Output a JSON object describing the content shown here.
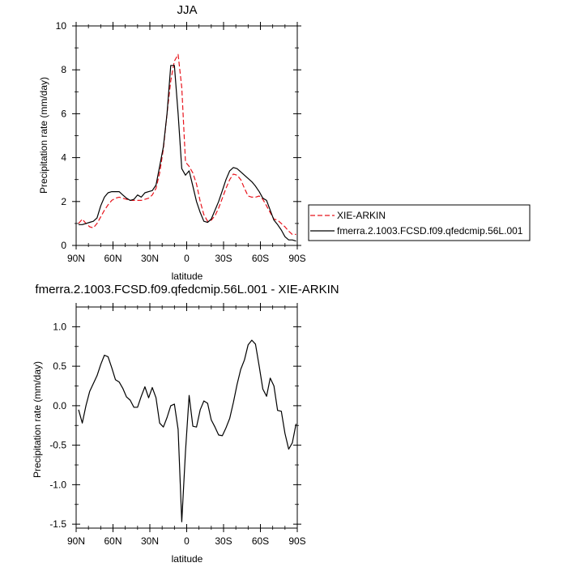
{
  "chart_data": [
    {
      "type": "line",
      "title": "JJA",
      "xlabel": "latitude",
      "ylabel": "Precipitation rate (mm/day)",
      "xlim": [
        -90,
        90
      ],
      "ylim": [
        0,
        10
      ],
      "x_ticks": [
        {
          "value": -90,
          "label": "90N"
        },
        {
          "value": -60,
          "label": "60N"
        },
        {
          "value": -30,
          "label": "30N"
        },
        {
          "value": 0,
          "label": "0"
        },
        {
          "value": 30,
          "label": "30S"
        },
        {
          "value": 60,
          "label": "60S"
        },
        {
          "value": 90,
          "label": "90S"
        }
      ],
      "y_ticks": [
        {
          "value": 0,
          "label": "0"
        },
        {
          "value": 2,
          "label": "2"
        },
        {
          "value": 4,
          "label": "4"
        },
        {
          "value": 6,
          "label": "6"
        },
        {
          "value": 8,
          "label": "8"
        },
        {
          "value": 10,
          "label": "10"
        }
      ],
      "grid": false,
      "legend_position": "right",
      "series": [
        {
          "name": "XIE-ARKIN",
          "color": "#e8141c",
          "dash": "dashed",
          "x": [
            -88,
            -85,
            -82,
            -79,
            -76,
            -73,
            -70,
            -67,
            -64,
            -61,
            -58,
            -55,
            -52,
            -49,
            -46,
            -43,
            -40,
            -37,
            -34,
            -31,
            -28,
            -25,
            -22,
            -19,
            -16,
            -13,
            -10,
            -7,
            -4,
            -1,
            2,
            5,
            8,
            11,
            14,
            17,
            20,
            23,
            26,
            29,
            32,
            35,
            38,
            41,
            44,
            47,
            50,
            53,
            56,
            59,
            62,
            65,
            68,
            71,
            74,
            77,
            80,
            83,
            86,
            89
          ],
          "y": [
            1.0,
            1.2,
            1.0,
            0.85,
            0.8,
            1.0,
            1.3,
            1.6,
            1.85,
            2.05,
            2.15,
            2.2,
            2.15,
            2.1,
            2.05,
            2.05,
            2.05,
            2.05,
            2.1,
            2.15,
            2.3,
            2.6,
            3.3,
            4.4,
            6.0,
            7.5,
            8.4,
            8.7,
            7.2,
            3.8,
            3.6,
            3.3,
            2.8,
            2.0,
            1.4,
            1.1,
            1.15,
            1.35,
            1.7,
            2.15,
            2.6,
            3.0,
            3.25,
            3.2,
            3.0,
            2.6,
            2.25,
            2.2,
            2.2,
            2.25,
            2.1,
            1.8,
            1.5,
            1.2,
            1.15,
            1.0,
            0.85,
            0.65,
            0.5,
            0.5
          ]
        },
        {
          "name": "fmerra.2.1003.FCSD.f09.qfedcmip.56L.001",
          "color": "#000000",
          "dash": "solid",
          "x": [
            -88,
            -85,
            -82,
            -79,
            -76,
            -73,
            -70,
            -67,
            -64,
            -61,
            -58,
            -55,
            -52,
            -49,
            -46,
            -43,
            -40,
            -37,
            -34,
            -31,
            -28,
            -25,
            -22,
            -19,
            -16,
            -13,
            -10,
            -7,
            -4,
            -1,
            2,
            5,
            8,
            11,
            14,
            17,
            20,
            23,
            26,
            29,
            32,
            35,
            38,
            41,
            44,
            47,
            50,
            53,
            56,
            59,
            62,
            65,
            68,
            71,
            74,
            77,
            80,
            83,
            86,
            89
          ],
          "y": [
            0.95,
            0.95,
            1.0,
            1.05,
            1.1,
            1.25,
            1.8,
            2.2,
            2.4,
            2.45,
            2.45,
            2.45,
            2.3,
            2.15,
            2.05,
            2.1,
            2.3,
            2.2,
            2.4,
            2.45,
            2.5,
            2.75,
            3.6,
            4.5,
            6.0,
            8.2,
            8.2,
            6.0,
            3.5,
            3.2,
            3.4,
            2.7,
            2.0,
            1.5,
            1.1,
            1.05,
            1.2,
            1.6,
            2.0,
            2.5,
            3.0,
            3.4,
            3.55,
            3.5,
            3.35,
            3.2,
            3.05,
            2.9,
            2.7,
            2.45,
            2.15,
            2.05,
            1.6,
            1.15,
            0.95,
            0.7,
            0.4,
            0.25,
            0.25,
            0.2
          ]
        }
      ]
    },
    {
      "type": "line",
      "title": "fmerra.2.1003.FCSD.f09.qfedcmip.56L.001 - XIE-ARKIN",
      "xlabel": "latitude",
      "ylabel": "Precipitation rate (mm/day)",
      "xlim": [
        -90,
        90
      ],
      "ylim": [
        -1.55,
        1.25
      ],
      "x_ticks": [
        {
          "value": -90,
          "label": "90N"
        },
        {
          "value": -60,
          "label": "60N"
        },
        {
          "value": -30,
          "label": "30N"
        },
        {
          "value": 0,
          "label": "0"
        },
        {
          "value": 30,
          "label": "30S"
        },
        {
          "value": 60,
          "label": "60S"
        },
        {
          "value": 90,
          "label": "90S"
        }
      ],
      "y_ticks": [
        {
          "value": 1.0,
          "label": "1.0"
        },
        {
          "value": 0.5,
          "label": "0.5"
        },
        {
          "value": 0.0,
          "label": "0.0"
        },
        {
          "value": -0.5,
          "label": "-0.5"
        },
        {
          "value": -1.0,
          "label": "-1.0"
        },
        {
          "value": -1.5,
          "label": "-1.5"
        }
      ],
      "grid": false,
      "series": [
        {
          "color": "#000000",
          "dash": "solid",
          "x": [
            -88,
            -85,
            -82,
            -79,
            -76,
            -73,
            -70,
            -67,
            -64,
            -61,
            -58,
            -55,
            -52,
            -49,
            -46,
            -43,
            -40,
            -37,
            -34,
            -31,
            -28,
            -25,
            -22,
            -19,
            -16,
            -13,
            -10,
            -7,
            -4,
            -1,
            2,
            5,
            8,
            11,
            14,
            17,
            20,
            23,
            26,
            29,
            32,
            35,
            38,
            41,
            44,
            47,
            50,
            53,
            56,
            59,
            62,
            65,
            68,
            71,
            74,
            77,
            80,
            83,
            86,
            89
          ],
          "y": [
            -0.05,
            -0.22,
            0.0,
            0.18,
            0.28,
            0.38,
            0.52,
            0.64,
            0.62,
            0.48,
            0.33,
            0.3,
            0.22,
            0.11,
            0.07,
            -0.02,
            -0.02,
            0.12,
            0.24,
            0.1,
            0.23,
            0.1,
            -0.22,
            -0.27,
            -0.15,
            0.0,
            0.02,
            -0.3,
            -1.47,
            -0.58,
            0.13,
            -0.26,
            -0.27,
            -0.05,
            0.06,
            0.03,
            -0.18,
            -0.27,
            -0.37,
            -0.38,
            -0.28,
            -0.16,
            0.04,
            0.27,
            0.46,
            0.58,
            0.77,
            0.83,
            0.78,
            0.5,
            0.21,
            0.12,
            0.35,
            0.25,
            -0.06,
            -0.07,
            -0.35,
            -0.55,
            -0.47,
            -0.23
          ]
        }
      ]
    }
  ]
}
